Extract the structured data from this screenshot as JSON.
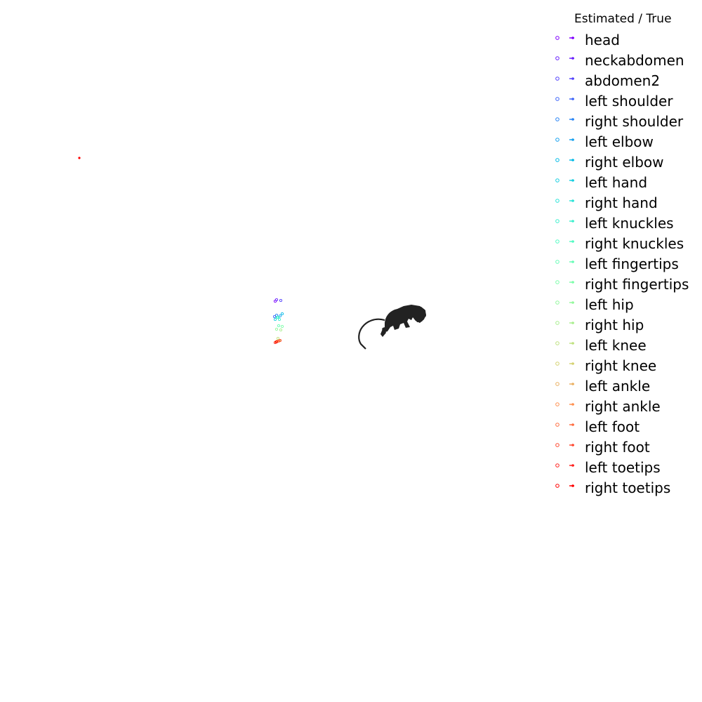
{
  "legend": {
    "title": "Estimated / True",
    "items": [
      {
        "label": "head",
        "color": "#8000ff"
      },
      {
        "label": "neckabdomen",
        "color": "#6a23fe"
      },
      {
        "label": "abdomen2",
        "color": "#5545fc"
      },
      {
        "label": "left shoulder",
        "color": "#3f66f9"
      },
      {
        "label": "right shoulder",
        "color": "#2a85f5"
      },
      {
        "label": "left elbow",
        "color": "#1aa2ef"
      },
      {
        "label": "right elbow",
        "color": "#05bbe7"
      },
      {
        "label": "left hand",
        "color": "#1acfe1"
      },
      {
        "label": "right hand",
        "color": "#2ee4d8"
      },
      {
        "label": "left knuckles",
        "color": "#40f0ce"
      },
      {
        "label": "right knuckles",
        "color": "#55fbc4"
      },
      {
        "label": "left fingertips",
        "color": "#6afdb8"
      },
      {
        "label": "right fingertips",
        "color": "#7ffeab"
      },
      {
        "label": "left hip",
        "color": "#95f89e"
      },
      {
        "label": "right hip",
        "color": "#aaef90"
      },
      {
        "label": "left knee",
        "color": "#c0e282"
      },
      {
        "label": "right knee",
        "color": "#d5d273"
      },
      {
        "label": "left ankle",
        "color": "#eab164"
      },
      {
        "label": "right ankle",
        "color": "#ff9253"
      },
      {
        "label": "left foot",
        "color": "#ff6f43"
      },
      {
        "label": "right foot",
        "color": "#ff4a32"
      },
      {
        "label": "left toetips",
        "color": "#ff2421"
      },
      {
        "label": "right toetips",
        "color": "#ff0000"
      }
    ]
  },
  "skeleton_markers": [
    {
      "joint": "head",
      "color": "#8000ff"
    },
    {
      "joint": "neckabdomen",
      "color": "#6a23fe"
    },
    {
      "joint": "abdomen2",
      "color": "#5545fc"
    },
    {
      "joint": "left shoulder",
      "color": "#3f66f9"
    },
    {
      "joint": "right shoulder",
      "color": "#2a85f5"
    },
    {
      "joint": "left elbow",
      "color": "#1aa2ef"
    },
    {
      "joint": "right elbow",
      "color": "#05bbe7"
    },
    {
      "joint": "left hand",
      "color": "#1acfe1"
    },
    {
      "joint": "right hand",
      "color": "#2ee4d8"
    },
    {
      "joint": "left knuckles",
      "color": "#40f0ce"
    },
    {
      "joint": "right knuckles",
      "color": "#55fbc4"
    },
    {
      "joint": "left fingertips",
      "color": "#6afdb8"
    },
    {
      "joint": "right fingertips",
      "color": "#7ffeab"
    },
    {
      "joint": "left hip",
      "color": "#95f89e"
    },
    {
      "joint": "right hip",
      "color": "#aaef90"
    },
    {
      "joint": "left knee",
      "color": "#c0e282"
    },
    {
      "joint": "right knee",
      "color": "#d5d273"
    },
    {
      "joint": "left ankle",
      "color": "#eab164"
    },
    {
      "joint": "right ankle",
      "color": "#ff9253"
    },
    {
      "joint": "left foot",
      "color": "#ff6f43"
    },
    {
      "joint": "right foot",
      "color": "#ff4a32"
    },
    {
      "joint": "left toetips",
      "color": "#ff2421"
    },
    {
      "joint": "right toetips",
      "color": "#ff0000"
    }
  ],
  "stray_marker": {
    "color": "#ff0000"
  },
  "silhouette_color": "#222222"
}
